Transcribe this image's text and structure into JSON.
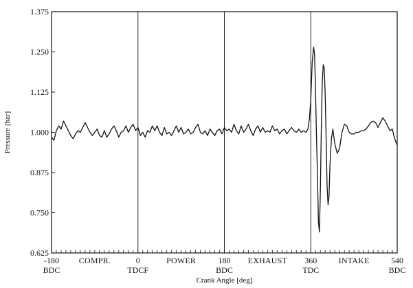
{
  "chart_data": {
    "type": "line",
    "title": "",
    "xlabel": "Crank Angle [deg]",
    "ylabel": "Pressure [bar]",
    "xlim": [
      -180,
      540
    ],
    "ylim": [
      0.625,
      1.375
    ],
    "grid": "vertical lines at every 180 deg",
    "yticks": [
      "1.375",
      "1.250",
      "1.125",
      "1.000",
      "0.875",
      "0.750",
      "0.625"
    ],
    "ytick_values": [
      1.375,
      1.25,
      1.125,
      1.0,
      0.875,
      0.75,
      0.625
    ],
    "xticks": [
      {
        "value": -180,
        "label": "-180",
        "sublabel": "BDC"
      },
      {
        "value": 0,
        "label": "0",
        "sublabel": "TDCF"
      },
      {
        "value": 180,
        "label": "180",
        "sublabel": "BDC"
      },
      {
        "value": 360,
        "label": "360",
        "sublabel": "TDC"
      },
      {
        "value": 540,
        "label": "540",
        "sublabel": "BDC"
      }
    ],
    "phase_labels": [
      {
        "text": "COMPR.",
        "x": -90
      },
      {
        "text": "POWER",
        "x": 90
      },
      {
        "text": "EXHAUST",
        "x": 270
      },
      {
        "text": "INTAKE",
        "x": 450
      }
    ],
    "series": [
      {
        "color": "#111111",
        "points": [
          [
            -180,
            0.985
          ],
          [
            -175,
            0.975
          ],
          [
            -170,
            1.005
          ],
          [
            -165,
            1.02
          ],
          [
            -160,
            1.01
          ],
          [
            -155,
            1.035
          ],
          [
            -150,
            1.02
          ],
          [
            -145,
            1.005
          ],
          [
            -140,
            0.99
          ],
          [
            -135,
            0.98
          ],
          [
            -130,
            0.995
          ],
          [
            -125,
            1.005
          ],
          [
            -120,
            1.0
          ],
          [
            -115,
            1.015
          ],
          [
            -110,
            1.03
          ],
          [
            -105,
            1.015
          ],
          [
            -100,
            1.0
          ],
          [
            -95,
            0.99
          ],
          [
            -90,
            1.0
          ],
          [
            -85,
            1.01
          ],
          [
            -80,
            0.99
          ],
          [
            -75,
            0.985
          ],
          [
            -70,
            1.005
          ],
          [
            -65,
            0.985
          ],
          [
            -60,
            0.995
          ],
          [
            -55,
            1.01
          ],
          [
            -50,
            1.02
          ],
          [
            -45,
            1.005
          ],
          [
            -40,
            0.985
          ],
          [
            -35,
            1.0
          ],
          [
            -30,
            1.005
          ],
          [
            -25,
            1.02
          ],
          [
            -20,
            1.0
          ],
          [
            -15,
            1.015
          ],
          [
            -10,
            1.025
          ],
          [
            -5,
            1.005
          ],
          [
            0,
            1.015
          ],
          [
            5,
            0.99
          ],
          [
            10,
            1.0
          ],
          [
            15,
            0.985
          ],
          [
            20,
            1.005
          ],
          [
            25,
            1.0
          ],
          [
            30,
            1.02
          ],
          [
            35,
            1.005
          ],
          [
            40,
            1.02
          ],
          [
            45,
            1.0
          ],
          [
            50,
            0.99
          ],
          [
            55,
            1.015
          ],
          [
            60,
            0.995
          ],
          [
            65,
            1.0
          ],
          [
            70,
            0.99
          ],
          [
            75,
            1.005
          ],
          [
            80,
            1.02
          ],
          [
            85,
            1.0
          ],
          [
            90,
            1.015
          ],
          [
            95,
            0.995
          ],
          [
            100,
            1.0
          ],
          [
            105,
            1.01
          ],
          [
            110,
            0.995
          ],
          [
            115,
            1.0
          ],
          [
            120,
            1.015
          ],
          [
            125,
            1.025
          ],
          [
            130,
            1.0
          ],
          [
            135,
            0.995
          ],
          [
            140,
            1.005
          ],
          [
            145,
            0.99
          ],
          [
            150,
            1.01
          ],
          [
            155,
            1.0
          ],
          [
            160,
            0.99
          ],
          [
            165,
            1.005
          ],
          [
            170,
            1.01
          ],
          [
            175,
            0.995
          ],
          [
            180,
            1.015
          ],
          [
            185,
            1.005
          ],
          [
            190,
            1.01
          ],
          [
            195,
            1.0
          ],
          [
            200,
            1.025
          ],
          [
            205,
            1.005
          ],
          [
            210,
            0.995
          ],
          [
            215,
            1.02
          ],
          [
            220,
            1.0
          ],
          [
            225,
            1.01
          ],
          [
            230,
            1.025
          ],
          [
            235,
            1.005
          ],
          [
            240,
            0.99
          ],
          [
            245,
            1.01
          ],
          [
            250,
            1.02
          ],
          [
            255,
            1.0
          ],
          [
            260,
            1.015
          ],
          [
            265,
            1.0
          ],
          [
            270,
            1.005
          ],
          [
            275,
            1.0
          ],
          [
            280,
            1.02
          ],
          [
            285,
            1.005
          ],
          [
            290,
            1.01
          ],
          [
            295,
            0.995
          ],
          [
            300,
            1.005
          ],
          [
            305,
            1.01
          ],
          [
            310,
            0.995
          ],
          [
            315,
            1.005
          ],
          [
            320,
            1.015
          ],
          [
            325,
            1.005
          ],
          [
            330,
            1.0
          ],
          [
            335,
            1.01
          ],
          [
            340,
            1.0
          ],
          [
            345,
            1.005
          ],
          [
            350,
            1.0
          ],
          [
            354,
            1.01
          ],
          [
            357,
            1.04
          ],
          [
            360,
            1.1
          ],
          [
            363,
            1.22
          ],
          [
            366,
            1.265
          ],
          [
            368,
            1.24
          ],
          [
            370,
            1.12
          ],
          [
            372,
            0.98
          ],
          [
            374,
            0.86
          ],
          [
            376,
            0.72
          ],
          [
            378,
            0.69
          ],
          [
            380,
            0.82
          ],
          [
            382,
            1.02
          ],
          [
            384,
            1.16
          ],
          [
            386,
            1.21
          ],
          [
            388,
            1.2
          ],
          [
            390,
            1.12
          ],
          [
            392,
            0.98
          ],
          [
            394,
            0.83
          ],
          [
            396,
            0.775
          ],
          [
            398,
            0.8
          ],
          [
            400,
            0.9
          ],
          [
            403,
            0.98
          ],
          [
            406,
            1.01
          ],
          [
            410,
            0.965
          ],
          [
            415,
            0.935
          ],
          [
            420,
            0.95
          ],
          [
            425,
            1.0
          ],
          [
            430,
            1.025
          ],
          [
            435,
            1.02
          ],
          [
            440,
            1.0
          ],
          [
            445,
            0.995
          ],
          [
            450,
            0.995
          ],
          [
            455,
            1.0
          ],
          [
            460,
            1.0
          ],
          [
            465,
            1.005
          ],
          [
            470,
            1.005
          ],
          [
            475,
            1.01
          ],
          [
            480,
            1.02
          ],
          [
            485,
            1.03
          ],
          [
            490,
            1.035
          ],
          [
            495,
            1.03
          ],
          [
            500,
            1.015
          ],
          [
            505,
            1.03
          ],
          [
            510,
            1.045
          ],
          [
            515,
            1.035
          ],
          [
            520,
            1.02
          ],
          [
            525,
            1.005
          ],
          [
            530,
            1.01
          ],
          [
            533,
            0.99
          ],
          [
            536,
            0.975
          ],
          [
            540,
            0.96
          ]
        ]
      }
    ]
  }
}
